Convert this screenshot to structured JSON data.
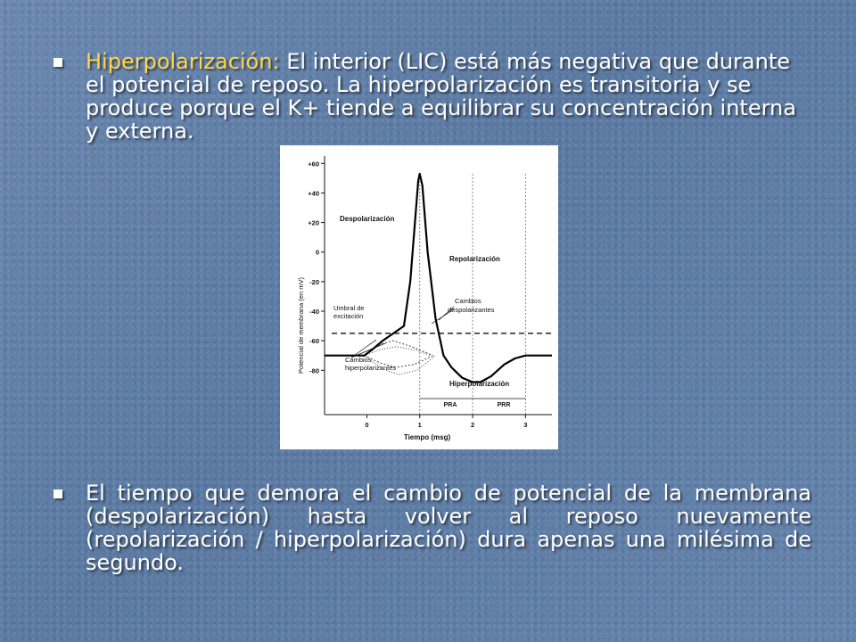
{
  "slide": {
    "bullet1": {
      "keyword": "Hiperpolarización:",
      "text": " El interior (LIC) está más negativa que durante el potencial de reposo. La hiperpolarización es transitoria y se produce porque el K+ tiende a equilibrar su concentración interna y externa."
    },
    "bullet2": {
      "text": "El  tiempo que demora el cambio de potencial de la membrana (despolarización) hasta volver al reposo nuevamente (repolarización / hiperpolarización) dura apenas una milésima de segundo."
    }
  },
  "chart_data": {
    "type": "line",
    "xlabel": "Tiempo (msg)",
    "ylabel": "Potencial de membrana (en mV)",
    "x_ticks": [
      "0",
      "1",
      "2",
      "3"
    ],
    "y_ticks": [
      "+60",
      "+40",
      "+20",
      "0",
      "-20",
      "-40",
      "-60",
      "-80"
    ],
    "xlim": [
      -0.8,
      3.5
    ],
    "ylim": [
      -110,
      65
    ],
    "annotations": {
      "despolarizacion": "Despolarización",
      "repolarizacion": "Repolarización",
      "cambios_despolarizantes": "Cambios despolarizantes",
      "umbral": "Umbral de excitación",
      "cambios_hiperpolarizantes": "Cambios hiperpolarizantes",
      "hiperpolarizacion": "Hiperpolarización",
      "pra": "PRA",
      "prr": "PRR"
    },
    "series": [
      {
        "x": [
          -0.8,
          -0.05,
          0.1,
          0.3,
          0.5,
          0.7,
          0.82,
          0.92,
          0.97,
          1.0,
          1.05,
          1.15,
          1.3,
          1.45,
          1.6,
          1.8,
          2.0,
          2.15,
          2.35,
          2.6,
          2.8,
          3.0,
          3.5
        ],
        "values": [
          -70,
          -70,
          -66,
          -60,
          -55,
          -50,
          -20,
          25,
          48,
          53,
          45,
          0,
          -45,
          -70,
          -78,
          -85,
          -88,
          -88,
          -84,
          -76,
          -72,
          -70,
          -70
        ]
      }
    ],
    "threshold": -55
  }
}
